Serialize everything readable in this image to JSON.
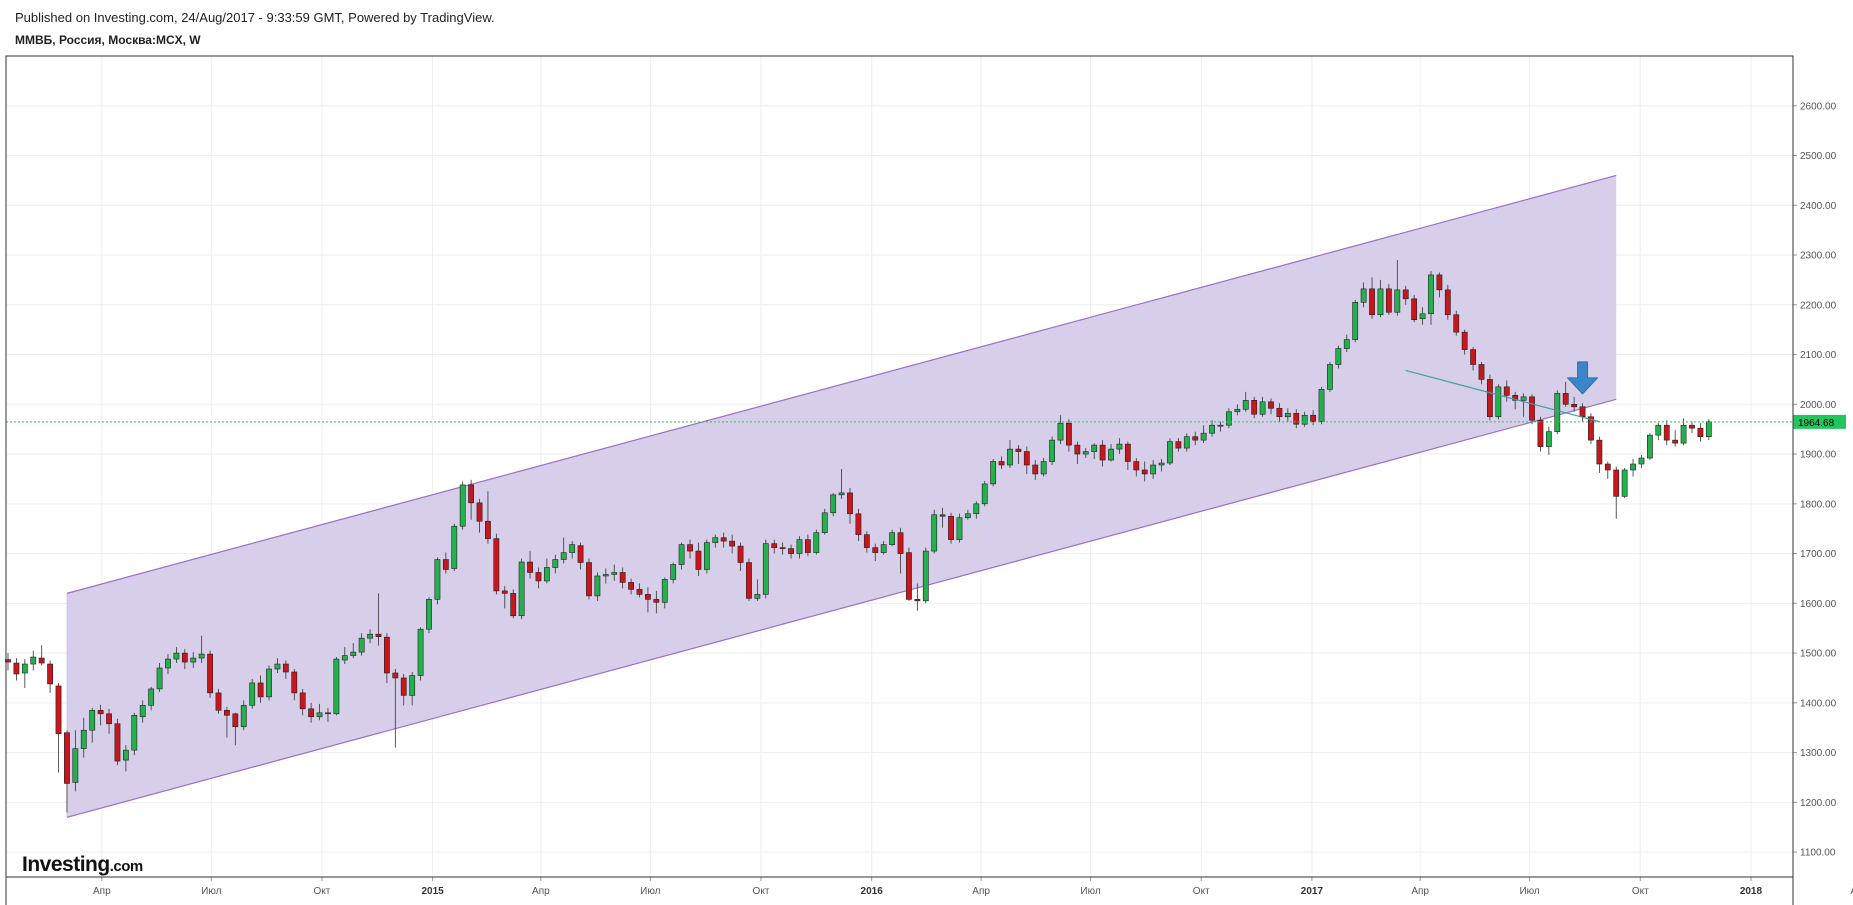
{
  "header": {
    "published": "Published on Investing.com, 24/Aug/2017 - 9:33:59 GMT, Powered by TradingView.",
    "symbol": "ММВБ, Россия, Москва:MCX, W"
  },
  "logo": {
    "main": "Investing",
    "suffix": ".com"
  },
  "colors": {
    "up": "#22b14c",
    "down": "#c8161d",
    "wick": "#333333",
    "channel_fill": "#d5cce8",
    "channel_line": "#9b6fc7",
    "trendline": "#3aa0a0",
    "price_line": "#22c55e",
    "arrow": "#3a86c8",
    "grid": "#eeeeee",
    "border": "#333333"
  },
  "chart_data": {
    "type": "candlestick",
    "interval": "W",
    "start_date": "2014-01-13",
    "ylim": [
      1050,
      2700
    ],
    "yticks": [
      "2600.00",
      "2500.00",
      "2400.00",
      "2300.00",
      "2200.00",
      "2100.00",
      "2000.00",
      "1900.00",
      "1800.00",
      "1700.00",
      "1600.00",
      "1500.00",
      "1400.00",
      "1300.00",
      "1200.00",
      "1100.00"
    ],
    "xticks": [
      {
        "date": "2014-04-01",
        "label": "Апр",
        "major": false
      },
      {
        "date": "2014-07-01",
        "label": "Июл",
        "major": false
      },
      {
        "date": "2014-10-01",
        "label": "Окт",
        "major": false
      },
      {
        "date": "2015-01-01",
        "label": "2015",
        "major": true
      },
      {
        "date": "2015-04-01",
        "label": "Апр",
        "major": false
      },
      {
        "date": "2015-07-01",
        "label": "Июл",
        "major": false
      },
      {
        "date": "2015-10-01",
        "label": "Окт",
        "major": false
      },
      {
        "date": "2016-01-01",
        "label": "2016",
        "major": true
      },
      {
        "date": "2016-04-01",
        "label": "Апр",
        "major": false
      },
      {
        "date": "2016-07-01",
        "label": "Июл",
        "major": false
      },
      {
        "date": "2016-10-01",
        "label": "Окт",
        "major": false
      },
      {
        "date": "2017-01-01",
        "label": "2017",
        "major": true
      },
      {
        "date": "2017-04-01",
        "label": "Апр",
        "major": false
      },
      {
        "date": "2017-07-01",
        "label": "Июл",
        "major": false
      },
      {
        "date": "2017-10-01",
        "label": "Окт",
        "major": false
      },
      {
        "date": "2018-01-01",
        "label": "2018",
        "major": true
      },
      {
        "date": "2018-04-01",
        "label": "Апр",
        "major": false
      }
    ],
    "last_price": "1964.68",
    "last_price_value": 1964.68,
    "channel": {
      "lower": [
        [
          "2014-03-03",
          1170
        ],
        [
          "2017-09-11",
          2010
        ]
      ],
      "upper": [
        [
          "2014-03-03",
          1620
        ],
        [
          "2017-09-11",
          2460
        ]
      ]
    },
    "trendline": [
      [
        "2017-03-20",
        2068
      ],
      [
        "2017-08-28",
        1965
      ]
    ],
    "arrow_at": [
      "2017-08-14",
      2025
    ],
    "candles": [
      [
        1487,
        1482,
        1500,
        1465
      ],
      [
        1480,
        1458,
        1490,
        1445
      ],
      [
        1460,
        1478,
        1488,
        1430
      ],
      [
        1478,
        1492,
        1505,
        1465
      ],
      [
        1490,
        1480,
        1516,
        1475
      ],
      [
        1478,
        1438,
        1485,
        1420
      ],
      [
        1434,
        1338,
        1440,
        1260
      ],
      [
        1340,
        1238,
        1345,
        1180
      ],
      [
        1240,
        1308,
        1345,
        1222
      ],
      [
        1308,
        1345,
        1370,
        1290
      ],
      [
        1345,
        1385,
        1390,
        1320
      ],
      [
        1385,
        1378,
        1396,
        1355
      ],
      [
        1378,
        1358,
        1388,
        1338
      ],
      [
        1358,
        1283,
        1368,
        1275
      ],
      [
        1285,
        1305,
        1315,
        1262
      ],
      [
        1305,
        1375,
        1380,
        1295
      ],
      [
        1372,
        1395,
        1405,
        1360
      ],
      [
        1395,
        1428,
        1432,
        1385
      ],
      [
        1428,
        1470,
        1480,
        1422
      ],
      [
        1470,
        1488,
        1498,
        1458
      ],
      [
        1488,
        1500,
        1512,
        1480
      ],
      [
        1500,
        1482,
        1508,
        1468
      ],
      [
        1482,
        1490,
        1502,
        1470
      ],
      [
        1490,
        1498,
        1535,
        1480
      ],
      [
        1498,
        1420,
        1505,
        1410
      ],
      [
        1420,
        1385,
        1428,
        1378
      ],
      [
        1385,
        1375,
        1392,
        1330
      ],
      [
        1378,
        1352,
        1380,
        1315
      ],
      [
        1352,
        1395,
        1405,
        1345
      ],
      [
        1395,
        1440,
        1448,
        1388
      ],
      [
        1440,
        1412,
        1455,
        1400
      ],
      [
        1412,
        1468,
        1475,
        1405
      ],
      [
        1468,
        1478,
        1490,
        1460
      ],
      [
        1478,
        1462,
        1485,
        1448
      ],
      [
        1462,
        1420,
        1468,
        1405
      ],
      [
        1420,
        1388,
        1428,
        1375
      ],
      [
        1388,
        1372,
        1400,
        1360
      ],
      [
        1372,
        1380,
        1398,
        1365
      ],
      [
        1380,
        1378,
        1390,
        1362
      ],
      [
        1378,
        1488,
        1492,
        1375
      ],
      [
        1486,
        1495,
        1512,
        1478
      ],
      [
        1495,
        1502,
        1520,
        1490
      ],
      [
        1502,
        1530,
        1540,
        1495
      ],
      [
        1530,
        1538,
        1548,
        1520
      ],
      [
        1538,
        1533,
        1620,
        1515
      ],
      [
        1532,
        1460,
        1540,
        1440
      ],
      [
        1460,
        1450,
        1468,
        1310
      ],
      [
        1450,
        1415,
        1458,
        1395
      ],
      [
        1415,
        1455,
        1462,
        1395
      ],
      [
        1455,
        1548,
        1552,
        1445
      ],
      [
        1548,
        1608,
        1612,
        1540
      ],
      [
        1608,
        1688,
        1692,
        1598
      ],
      [
        1688,
        1668,
        1702,
        1660
      ],
      [
        1670,
        1755,
        1760,
        1665
      ],
      [
        1755,
        1838,
        1845,
        1748
      ],
      [
        1838,
        1802,
        1848,
        1768
      ],
      [
        1802,
        1765,
        1810,
        1742
      ],
      [
        1765,
        1730,
        1825,
        1720
      ],
      [
        1730,
        1625,
        1740,
        1618
      ],
      [
        1625,
        1620,
        1635,
        1590
      ],
      [
        1620,
        1575,
        1628,
        1570
      ],
      [
        1575,
        1683,
        1690,
        1568
      ],
      [
        1683,
        1662,
        1705,
        1650
      ],
      [
        1662,
        1645,
        1672,
        1630
      ],
      [
        1645,
        1672,
        1690,
        1640
      ],
      [
        1672,
        1688,
        1698,
        1660
      ],
      [
        1688,
        1702,
        1732,
        1680
      ],
      [
        1702,
        1718,
        1725,
        1690
      ],
      [
        1716,
        1682,
        1722,
        1668
      ],
      [
        1682,
        1615,
        1690,
        1608
      ],
      [
        1615,
        1655,
        1662,
        1605
      ],
      [
        1655,
        1658,
        1670,
        1640
      ],
      [
        1658,
        1662,
        1678,
        1645
      ],
      [
        1662,
        1642,
        1672,
        1630
      ],
      [
        1642,
        1628,
        1650,
        1618
      ],
      [
        1628,
        1618,
        1640,
        1612
      ],
      [
        1618,
        1608,
        1632,
        1582
      ],
      [
        1608,
        1602,
        1625,
        1580
      ],
      [
        1602,
        1648,
        1652,
        1590
      ],
      [
        1648,
        1678,
        1682,
        1640
      ],
      [
        1678,
        1718,
        1722,
        1668
      ],
      [
        1718,
        1705,
        1728,
        1690
      ],
      [
        1705,
        1668,
        1722,
        1655
      ],
      [
        1668,
        1722,
        1728,
        1660
      ],
      [
        1722,
        1732,
        1738,
        1712
      ],
      [
        1732,
        1725,
        1742,
        1712
      ],
      [
        1725,
        1715,
        1738,
        1700
      ],
      [
        1715,
        1682,
        1722,
        1665
      ],
      [
        1682,
        1610,
        1690,
        1605
      ],
      [
        1610,
        1618,
        1648,
        1605
      ],
      [
        1618,
        1720,
        1728,
        1610
      ],
      [
        1720,
        1712,
        1728,
        1700
      ],
      [
        1712,
        1710,
        1722,
        1698
      ],
      [
        1710,
        1700,
        1718,
        1690
      ],
      [
        1700,
        1728,
        1735,
        1690
      ],
      [
        1728,
        1702,
        1738,
        1695
      ],
      [
        1702,
        1742,
        1748,
        1698
      ],
      [
        1742,
        1782,
        1790,
        1738
      ],
      [
        1782,
        1818,
        1822,
        1775
      ],
      [
        1818,
        1822,
        1870,
        1810
      ],
      [
        1822,
        1780,
        1832,
        1760
      ],
      [
        1780,
        1738,
        1790,
        1725
      ],
      [
        1738,
        1712,
        1745,
        1702
      ],
      [
        1712,
        1702,
        1720,
        1685
      ],
      [
        1702,
        1718,
        1725,
        1698
      ],
      [
        1718,
        1742,
        1748,
        1715
      ],
      [
        1742,
        1700,
        1752,
        1660
      ],
      [
        1702,
        1608,
        1712,
        1605
      ],
      [
        1608,
        1605,
        1640,
        1585
      ],
      [
        1605,
        1705,
        1712,
        1600
      ],
      [
        1705,
        1778,
        1788,
        1700
      ],
      [
        1778,
        1775,
        1792,
        1752
      ],
      [
        1775,
        1728,
        1782,
        1720
      ],
      [
        1728,
        1772,
        1780,
        1722
      ],
      [
        1772,
        1780,
        1788,
        1768
      ],
      [
        1780,
        1800,
        1805,
        1770
      ],
      [
        1800,
        1840,
        1846,
        1795
      ],
      [
        1840,
        1885,
        1890,
        1835
      ],
      [
        1885,
        1878,
        1895,
        1870
      ],
      [
        1878,
        1910,
        1928,
        1872
      ],
      [
        1910,
        1905,
        1918,
        1880
      ],
      [
        1905,
        1878,
        1915,
        1860
      ],
      [
        1878,
        1860,
        1888,
        1848
      ],
      [
        1860,
        1885,
        1892,
        1855
      ],
      [
        1885,
        1928,
        1935,
        1878
      ],
      [
        1928,
        1962,
        1978,
        1920
      ],
      [
        1962,
        1918,
        1970,
        1905
      ],
      [
        1918,
        1900,
        1925,
        1880
      ],
      [
        1900,
        1905,
        1912,
        1892
      ],
      [
        1905,
        1918,
        1922,
        1890
      ],
      [
        1918,
        1888,
        1928,
        1875
      ],
      [
        1888,
        1910,
        1920,
        1885
      ],
      [
        1910,
        1920,
        1932,
        1900
      ],
      [
        1920,
        1885,
        1925,
        1868
      ],
      [
        1885,
        1868,
        1892,
        1855
      ],
      [
        1868,
        1860,
        1885,
        1845
      ],
      [
        1860,
        1878,
        1888,
        1850
      ],
      [
        1878,
        1882,
        1890,
        1865
      ],
      [
        1882,
        1925,
        1932,
        1878
      ],
      [
        1925,
        1912,
        1932,
        1905
      ],
      [
        1912,
        1935,
        1942,
        1905
      ],
      [
        1935,
        1928,
        1945,
        1918
      ],
      [
        1928,
        1942,
        1958,
        1922
      ],
      [
        1942,
        1958,
        1968,
        1935
      ],
      [
        1958,
        1958,
        1965,
        1945
      ],
      [
        1958,
        1985,
        1992,
        1952
      ],
      [
        1985,
        1990,
        2000,
        1978
      ],
      [
        1990,
        2008,
        2025,
        1985
      ],
      [
        2008,
        1980,
        2015,
        1972
      ],
      [
        1980,
        2005,
        2015,
        1975
      ],
      [
        2005,
        1992,
        2012,
        1980
      ],
      [
        1992,
        1975,
        2002,
        1965
      ],
      [
        1975,
        1982,
        1992,
        1965
      ],
      [
        1982,
        1960,
        1990,
        1952
      ],
      [
        1960,
        1978,
        1985,
        1955
      ],
      [
        1978,
        1965,
        1988,
        1958
      ],
      [
        1965,
        2030,
        2035,
        1960
      ],
      [
        2030,
        2080,
        2085,
        2025
      ],
      [
        2080,
        2112,
        2118,
        2072
      ],
      [
        2112,
        2130,
        2140,
        2105
      ],
      [
        2130,
        2205,
        2210,
        2125
      ],
      [
        2205,
        2232,
        2245,
        2195
      ],
      [
        2232,
        2180,
        2255,
        2172
      ],
      [
        2180,
        2232,
        2250,
        2175
      ],
      [
        2232,
        2185,
        2242,
        2180
      ],
      [
        2185,
        2230,
        2290,
        2178
      ],
      [
        2230,
        2212,
        2238,
        2200
      ],
      [
        2212,
        2170,
        2220,
        2165
      ],
      [
        2172,
        2182,
        2195,
        2160
      ],
      [
        2182,
        2260,
        2268,
        2160
      ],
      [
        2260,
        2230,
        2265,
        2215
      ],
      [
        2230,
        2180,
        2240,
        2170
      ],
      [
        2180,
        2145,
        2188,
        2138
      ],
      [
        2145,
        2110,
        2150,
        2100
      ],
      [
        2110,
        2080,
        2115,
        2068
      ],
      [
        2080,
        2050,
        2085,
        2040
      ],
      [
        2050,
        1975,
        2060,
        1968
      ],
      [
        1975,
        2035,
        2040,
        1970
      ],
      [
        2035,
        2018,
        2048,
        2005
      ],
      [
        2018,
        2008,
        2025,
        1990
      ],
      [
        2008,
        2015,
        2022,
        1975
      ],
      [
        2015,
        1968,
        2020,
        1960
      ],
      [
        1968,
        1915,
        1975,
        1905
      ],
      [
        1915,
        1945,
        1955,
        1898
      ],
      [
        1945,
        2022,
        2028,
        1940
      ],
      [
        2022,
        2000,
        2045,
        1995
      ],
      [
        2000,
        1995,
        2015,
        1985
      ],
      [
        1995,
        1975,
        2002,
        1965
      ],
      [
        1975,
        1928,
        1982,
        1920
      ],
      [
        1928,
        1880,
        1935,
        1862
      ],
      [
        1880,
        1868,
        1885,
        1850
      ],
      [
        1868,
        1815,
        1875,
        1770
      ],
      [
        1815,
        1868,
        1872,
        1812
      ],
      [
        1868,
        1880,
        1890,
        1855
      ],
      [
        1880,
        1892,
        1898,
        1872
      ],
      [
        1892,
        1938,
        1942,
        1888
      ],
      [
        1938,
        1958,
        1962,
        1928
      ],
      [
        1958,
        1928,
        1968,
        1918
      ],
      [
        1928,
        1922,
        1948,
        1915
      ],
      [
        1922,
        1958,
        1972,
        1918
      ],
      [
        1958,
        1952,
        1965,
        1942
      ],
      [
        1952,
        1935,
        1962,
        1925
      ],
      [
        1935,
        1965,
        1970,
        1928
      ]
    ]
  }
}
